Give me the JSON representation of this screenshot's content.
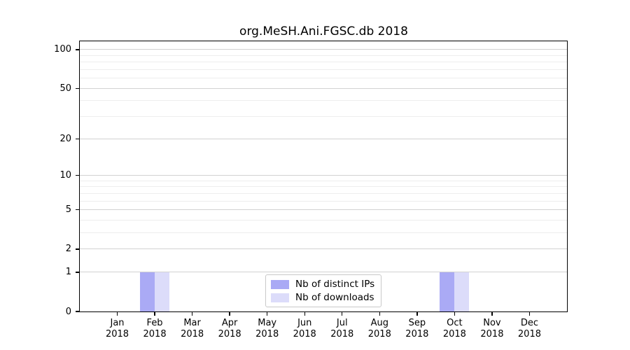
{
  "figure": {
    "background": "#ffffff"
  },
  "chart_data": {
    "type": "bar",
    "title": "org.MeSH.Ani.FGSC.db 2018",
    "categories": [
      "Jan 2018",
      "Feb 2018",
      "Mar 2018",
      "Apr 2018",
      "May 2018",
      "Jun 2018",
      "Jul 2018",
      "Aug 2018",
      "Sep 2018",
      "Oct 2018",
      "Nov 2018",
      "Dec 2018"
    ],
    "series": [
      {
        "name": "Nb of distinct IPs",
        "color": "#aaaaf5",
        "values": [
          0,
          1,
          0,
          0,
          0,
          0,
          0,
          0,
          0,
          1,
          0,
          0
        ]
      },
      {
        "name": "Nb of downloads",
        "color": "#dcdcfa",
        "values": [
          0,
          1,
          0,
          0,
          0,
          0,
          0,
          0,
          0,
          1,
          0,
          0
        ]
      }
    ],
    "xlabel": "",
    "ylabel": "",
    "yscale": "log1p",
    "ylim": [
      0,
      116
    ],
    "y_major_ticks": [
      0,
      1,
      2,
      5,
      10,
      20,
      50,
      100
    ],
    "y_minor_gridlines": [
      3,
      4,
      6,
      7,
      8,
      9,
      30,
      40,
      60,
      70,
      80,
      90
    ],
    "grid": true,
    "legend_position": "lower center",
    "colors": {
      "grid_major": "#d2d2d2",
      "grid_minor": "#ededed",
      "axis": "#000000",
      "text": "#000000"
    }
  }
}
